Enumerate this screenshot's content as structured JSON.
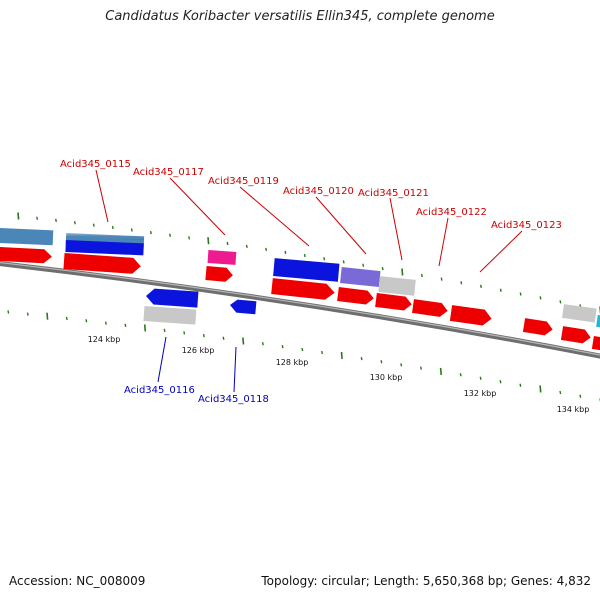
{
  "title": "Candidatus Koribacter versatilis Ellin345, complete genome",
  "footer": {
    "accession": "Accession: NC_008009",
    "topology": "Topology: circular; Length: 5,650,368 bp; Genes: 4,832"
  },
  "colors": {
    "backbone": "#7a7a7a",
    "tick": "#2a7a1a",
    "label_forward": "#cc0000",
    "label_reverse": "#0000bb",
    "red": "#ee0000",
    "blue": "#0a14dd",
    "steelblue": "#4a86b8",
    "pink": "#ee1a90",
    "purple": "#7a6ad8",
    "gray": "#c8c8c8",
    "cyan": "#20b8d8"
  },
  "scale_labels": [
    "124 kbp",
    "126 kbp",
    "128 kbp",
    "130 kbp",
    "132 kbp",
    "134 kbp"
  ],
  "gene_labels": [
    {
      "text": "Acid345_0115",
      "strand": "forward"
    },
    {
      "text": "Acid345_0117",
      "strand": "forward"
    },
    {
      "text": "Acid345_0119",
      "strand": "forward"
    },
    {
      "text": "Acid345_0120",
      "strand": "forward"
    },
    {
      "text": "Acid345_0121",
      "strand": "forward"
    },
    {
      "text": "Acid345_0122",
      "strand": "forward"
    },
    {
      "text": "Acid345_0123",
      "strand": "forward"
    },
    {
      "text": "Acid345_0116",
      "strand": "reverse"
    },
    {
      "text": "Acid345_0118",
      "strand": "reverse"
    }
  ]
}
